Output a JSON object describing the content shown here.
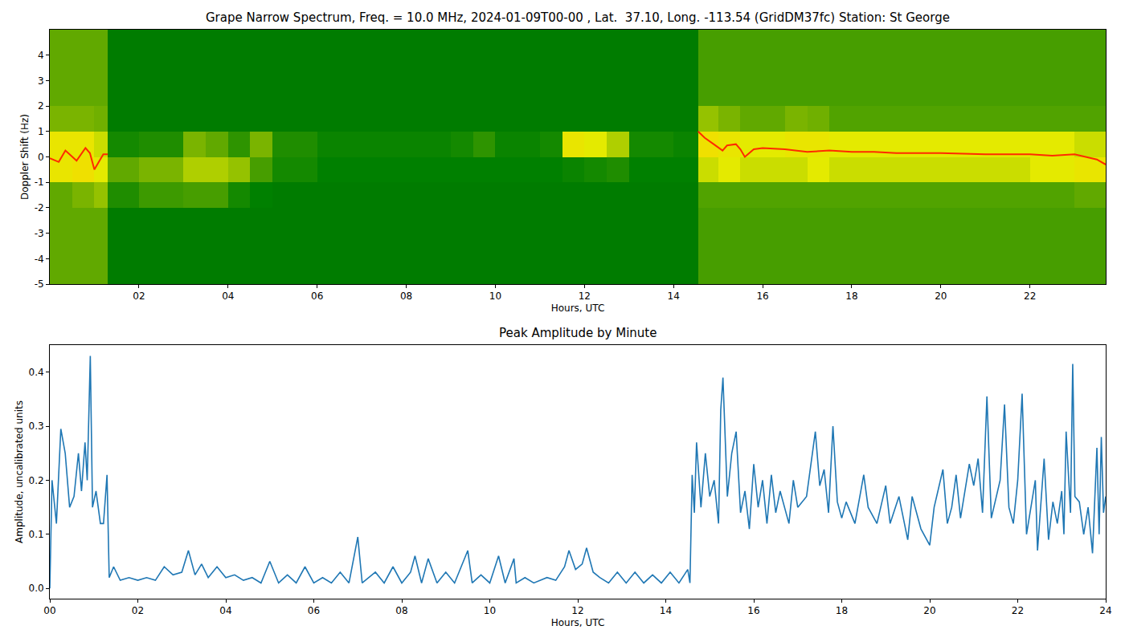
{
  "chart_data": [
    {
      "type": "heatmap",
      "title": "Grape Narrow Spectrum, Freq. = 10.0 MHz, 2024-01-09T00-00 , Lat.  37.10, Long. -113.54 (GridDM37fc) Station: St George",
      "x_label": "Hours, UTC",
      "y_label": "Doppler Shift (Hz)",
      "x_bins": [
        0,
        0.5,
        1,
        1.3,
        2,
        3,
        3.5,
        4,
        4.5,
        5,
        6,
        7,
        8,
        9,
        9.5,
        10,
        11,
        11.5,
        12,
        12.5,
        13,
        14,
        14.55,
        15,
        15.5,
        16,
        16.5,
        17,
        17.5,
        18,
        19,
        20,
        21,
        22,
        23,
        23.5,
        24
      ],
      "y_bins": [
        -5,
        -4,
        -3,
        -2,
        -1,
        0,
        1,
        2,
        3,
        4,
        5
      ],
      "z": [
        [
          0.25,
          0.25,
          0.25,
          0.05,
          0.05,
          0.05,
          0.05,
          0.05,
          0.05,
          0.05,
          0.05,
          0.05,
          0.05,
          0.05,
          0.05,
          0.05,
          0.05,
          0.05,
          0.05,
          0.05,
          0.05,
          0.05,
          0.2,
          0.2,
          0.2,
          0.2,
          0.2,
          0.2,
          0.2,
          0.2,
          0.2,
          0.2,
          0.2,
          0.2,
          0.2,
          0.2
        ],
        [
          0.25,
          0.25,
          0.25,
          0.05,
          0.05,
          0.05,
          0.05,
          0.05,
          0.05,
          0.05,
          0.05,
          0.05,
          0.05,
          0.05,
          0.05,
          0.05,
          0.05,
          0.05,
          0.05,
          0.05,
          0.05,
          0.05,
          0.2,
          0.2,
          0.2,
          0.2,
          0.2,
          0.2,
          0.2,
          0.2,
          0.2,
          0.2,
          0.2,
          0.2,
          0.2,
          0.2
        ],
        [
          0.25,
          0.25,
          0.25,
          0.05,
          0.05,
          0.05,
          0.05,
          0.05,
          0.05,
          0.05,
          0.05,
          0.05,
          0.05,
          0.05,
          0.05,
          0.05,
          0.05,
          0.05,
          0.05,
          0.05,
          0.05,
          0.05,
          0.2,
          0.2,
          0.2,
          0.2,
          0.2,
          0.2,
          0.2,
          0.2,
          0.2,
          0.2,
          0.2,
          0.2,
          0.2,
          0.2
        ],
        [
          0.25,
          0.3,
          0.35,
          0.12,
          0.18,
          0.2,
          0.2,
          0.1,
          0.06,
          0.05,
          0.05,
          0.05,
          0.05,
          0.05,
          0.05,
          0.05,
          0.05,
          0.05,
          0.05,
          0.05,
          0.05,
          0.05,
          0.22,
          0.22,
          0.22,
          0.22,
          0.22,
          0.22,
          0.22,
          0.22,
          0.22,
          0.22,
          0.22,
          0.22,
          0.25,
          0.25
        ],
        [
          0.55,
          0.6,
          0.5,
          0.25,
          0.3,
          0.4,
          0.4,
          0.35,
          0.2,
          0.1,
          0.06,
          0.06,
          0.06,
          0.06,
          0.06,
          0.06,
          0.06,
          0.08,
          0.1,
          0.12,
          0.06,
          0.06,
          0.45,
          0.5,
          0.45,
          0.45,
          0.45,
          0.5,
          0.45,
          0.45,
          0.45,
          0.45,
          0.45,
          0.5,
          0.55,
          0.55
        ],
        [
          0.55,
          0.55,
          0.45,
          0.1,
          0.12,
          0.3,
          0.25,
          0.15,
          0.3,
          0.12,
          0.08,
          0.08,
          0.08,
          0.1,
          0.15,
          0.08,
          0.1,
          0.55,
          0.5,
          0.4,
          0.1,
          0.08,
          0.6,
          0.55,
          0.5,
          0.5,
          0.55,
          0.55,
          0.5,
          0.5,
          0.5,
          0.5,
          0.5,
          0.5,
          0.45,
          0.45
        ],
        [
          0.3,
          0.3,
          0.28,
          0.05,
          0.05,
          0.05,
          0.05,
          0.05,
          0.05,
          0.05,
          0.05,
          0.05,
          0.05,
          0.05,
          0.05,
          0.05,
          0.05,
          0.05,
          0.05,
          0.05,
          0.05,
          0.05,
          0.35,
          0.3,
          0.25,
          0.25,
          0.3,
          0.28,
          0.22,
          0.22,
          0.22,
          0.22,
          0.22,
          0.22,
          0.22,
          0.22
        ],
        [
          0.25,
          0.25,
          0.25,
          0.05,
          0.05,
          0.05,
          0.05,
          0.05,
          0.05,
          0.05,
          0.05,
          0.05,
          0.05,
          0.05,
          0.05,
          0.05,
          0.05,
          0.05,
          0.05,
          0.05,
          0.05,
          0.05,
          0.2,
          0.2,
          0.2,
          0.2,
          0.2,
          0.2,
          0.2,
          0.2,
          0.2,
          0.2,
          0.2,
          0.2,
          0.2,
          0.2
        ],
        [
          0.25,
          0.25,
          0.25,
          0.05,
          0.05,
          0.05,
          0.05,
          0.05,
          0.05,
          0.05,
          0.05,
          0.05,
          0.05,
          0.05,
          0.05,
          0.05,
          0.05,
          0.05,
          0.05,
          0.05,
          0.05,
          0.05,
          0.2,
          0.2,
          0.2,
          0.2,
          0.2,
          0.2,
          0.2,
          0.2,
          0.2,
          0.2,
          0.2,
          0.2,
          0.2,
          0.2
        ],
        [
          0.25,
          0.25,
          0.25,
          0.05,
          0.05,
          0.05,
          0.05,
          0.05,
          0.05,
          0.05,
          0.05,
          0.05,
          0.05,
          0.05,
          0.05,
          0.05,
          0.05,
          0.05,
          0.05,
          0.05,
          0.05,
          0.05,
          0.2,
          0.2,
          0.2,
          0.2,
          0.2,
          0.2,
          0.2,
          0.2,
          0.2,
          0.2,
          0.2,
          0.2,
          0.2,
          0.2
        ]
      ],
      "zlim": [
        0,
        1
      ],
      "series": [
        {
          "color": "#ff2a00",
          "x": [
            0,
            0.2,
            0.35,
            0.5,
            0.6,
            0.8,
            0.9,
            1.0,
            1.1,
            1.2,
            1.3,
            8,
            14.55,
            14.7,
            14.9,
            15.1,
            15.2,
            15.4,
            15.5,
            15.6,
            15.8,
            16,
            16.5,
            17,
            17.5,
            18,
            18.5,
            19,
            20,
            21,
            22,
            22.5,
            23,
            23.5,
            23.7
          ],
          "values": [
            -0.05,
            -0.2,
            0.25,
            0.0,
            -0.15,
            0.35,
            0.15,
            -0.5,
            -0.2,
            0.1,
            0.1,
            null,
            1.0,
            0.75,
            0.5,
            0.25,
            0.45,
            0.5,
            0.3,
            0.0,
            0.3,
            0.35,
            0.3,
            0.2,
            0.25,
            0.2,
            0.2,
            0.15,
            0.15,
            0.1,
            0.1,
            0.05,
            0.1,
            -0.1,
            -0.3
          ]
        }
      ],
      "xlim": [
        0,
        23.7
      ],
      "ylim": [
        -5,
        5
      ],
      "xticks": [
        {
          "value": 2,
          "label": "02"
        },
        {
          "value": 4,
          "label": "04"
        },
        {
          "value": 6,
          "label": "06"
        },
        {
          "value": 8,
          "label": "08"
        },
        10,
        12,
        14,
        16,
        18,
        20,
        22
      ],
      "yticks": [
        -5,
        -4,
        -3,
        -2,
        -1,
        0,
        1,
        2,
        3,
        4
      ]
    },
    {
      "type": "line",
      "title": "Peak Amplitude by Minute",
      "x_label": "Hours, UTC",
      "y_label": "Amplitude, uncalibrated units",
      "color": "#1f77b4",
      "x": [
        0,
        0.05,
        0.15,
        0.2,
        0.25,
        0.35,
        0.45,
        0.55,
        0.65,
        0.72,
        0.8,
        0.85,
        0.92,
        0.97,
        1.05,
        1.15,
        1.22,
        1.3,
        1.35,
        1.45,
        1.6,
        1.8,
        2.0,
        2.2,
        2.4,
        2.6,
        2.8,
        3.0,
        3.15,
        3.3,
        3.45,
        3.6,
        3.8,
        4.0,
        4.2,
        4.4,
        4.6,
        4.8,
        5.0,
        5.2,
        5.4,
        5.6,
        5.8,
        6.0,
        6.2,
        6.4,
        6.6,
        6.8,
        7.0,
        7.1,
        7.4,
        7.6,
        7.8,
        8.0,
        8.2,
        8.3,
        8.45,
        8.6,
        8.8,
        9.0,
        9.2,
        9.5,
        9.6,
        9.8,
        10.0,
        10.2,
        10.35,
        10.55,
        10.6,
        10.8,
        11.0,
        11.3,
        11.5,
        11.7,
        11.8,
        11.95,
        12.1,
        12.2,
        12.35,
        12.5,
        12.7,
        12.9,
        13.1,
        13.3,
        13.5,
        13.7,
        13.9,
        14.1,
        14.3,
        14.5,
        14.55,
        14.6,
        14.65,
        14.7,
        14.8,
        14.9,
        15.0,
        15.1,
        15.2,
        15.25,
        15.3,
        15.4,
        15.5,
        15.6,
        15.7,
        15.8,
        15.9,
        16.0,
        16.1,
        16.2,
        16.3,
        16.4,
        16.5,
        16.6,
        16.8,
        16.9,
        17.0,
        17.2,
        17.4,
        17.5,
        17.6,
        17.7,
        17.8,
        17.9,
        18.0,
        18.1,
        18.3,
        18.5,
        18.6,
        18.8,
        19.0,
        19.1,
        19.3,
        19.5,
        19.6,
        19.8,
        20.0,
        20.1,
        20.3,
        20.4,
        20.5,
        20.6,
        20.7,
        20.9,
        21.0,
        21.1,
        21.2,
        21.3,
        21.4,
        21.6,
        21.7,
        21.8,
        21.9,
        22.0,
        22.1,
        22.2,
        22.3,
        22.4,
        22.45,
        22.6,
        22.7,
        22.8,
        22.9,
        23.0,
        23.05,
        23.1,
        23.2,
        23.25,
        23.3,
        23.4,
        23.5,
        23.6,
        23.7,
        23.8,
        23.85,
        23.9,
        23.95,
        24.0
      ],
      "values": [
        0,
        0.2,
        0.12,
        0.21,
        0.295,
        0.25,
        0.15,
        0.17,
        0.25,
        0.18,
        0.27,
        0.2,
        0.43,
        0.15,
        0.18,
        0.12,
        0.12,
        0.21,
        0.02,
        0.04,
        0.015,
        0.02,
        0.015,
        0.02,
        0.015,
        0.04,
        0.025,
        0.03,
        0.07,
        0.025,
        0.045,
        0.02,
        0.04,
        0.02,
        0.025,
        0.015,
        0.02,
        0.01,
        0.05,
        0.01,
        0.025,
        0.01,
        0.04,
        0.01,
        0.02,
        0.01,
        0.03,
        0.01,
        0.095,
        0.01,
        0.03,
        0.01,
        0.04,
        0.01,
        0.03,
        0.06,
        0.01,
        0.055,
        0.01,
        0.03,
        0.01,
        0.07,
        0.01,
        0.025,
        0.01,
        0.06,
        0.01,
        0.055,
        0.01,
        0.02,
        0.01,
        0.02,
        0.015,
        0.04,
        0.07,
        0.035,
        0.045,
        0.075,
        0.03,
        0.02,
        0.01,
        0.03,
        0.01,
        0.03,
        0.01,
        0.025,
        0.01,
        0.03,
        0.01,
        0.035,
        0.01,
        0.21,
        0.14,
        0.27,
        0.15,
        0.25,
        0.17,
        0.2,
        0.12,
        0.33,
        0.39,
        0.17,
        0.25,
        0.29,
        0.14,
        0.18,
        0.11,
        0.23,
        0.15,
        0.2,
        0.12,
        0.21,
        0.14,
        0.18,
        0.12,
        0.2,
        0.15,
        0.17,
        0.29,
        0.19,
        0.22,
        0.14,
        0.3,
        0.16,
        0.13,
        0.16,
        0.12,
        0.21,
        0.15,
        0.12,
        0.19,
        0.12,
        0.17,
        0.09,
        0.17,
        0.11,
        0.08,
        0.15,
        0.22,
        0.12,
        0.15,
        0.21,
        0.13,
        0.23,
        0.19,
        0.24,
        0.14,
        0.355,
        0.13,
        0.2,
        0.34,
        0.15,
        0.12,
        0.2,
        0.36,
        0.1,
        0.15,
        0.2,
        0.07,
        0.24,
        0.09,
        0.16,
        0.12,
        0.18,
        0.1,
        0.29,
        0.14,
        0.415,
        0.17,
        0.16,
        0.1,
        0.15,
        0.065,
        0.26,
        0.1,
        0.28,
        0.14,
        0.17
      ],
      "xlim": [
        0,
        24
      ],
      "ylim": [
        -0.019,
        0.45
      ],
      "xticks": [
        {
          "value": 0,
          "label": "00"
        },
        {
          "value": 2,
          "label": "02"
        },
        {
          "value": 4,
          "label": "04"
        },
        {
          "value": 6,
          "label": "06"
        },
        {
          "value": 8,
          "label": "08"
        },
        10,
        12,
        14,
        16,
        18,
        20,
        22,
        24
      ],
      "yticks": [
        {
          "value": 0,
          "label": "0.0"
        },
        {
          "value": 0.1,
          "label": "0.1"
        },
        {
          "value": 0.2,
          "label": "0.2"
        },
        {
          "value": 0.3,
          "label": "0.3"
        },
        {
          "value": 0.4,
          "label": "0.4"
        }
      ]
    }
  ]
}
